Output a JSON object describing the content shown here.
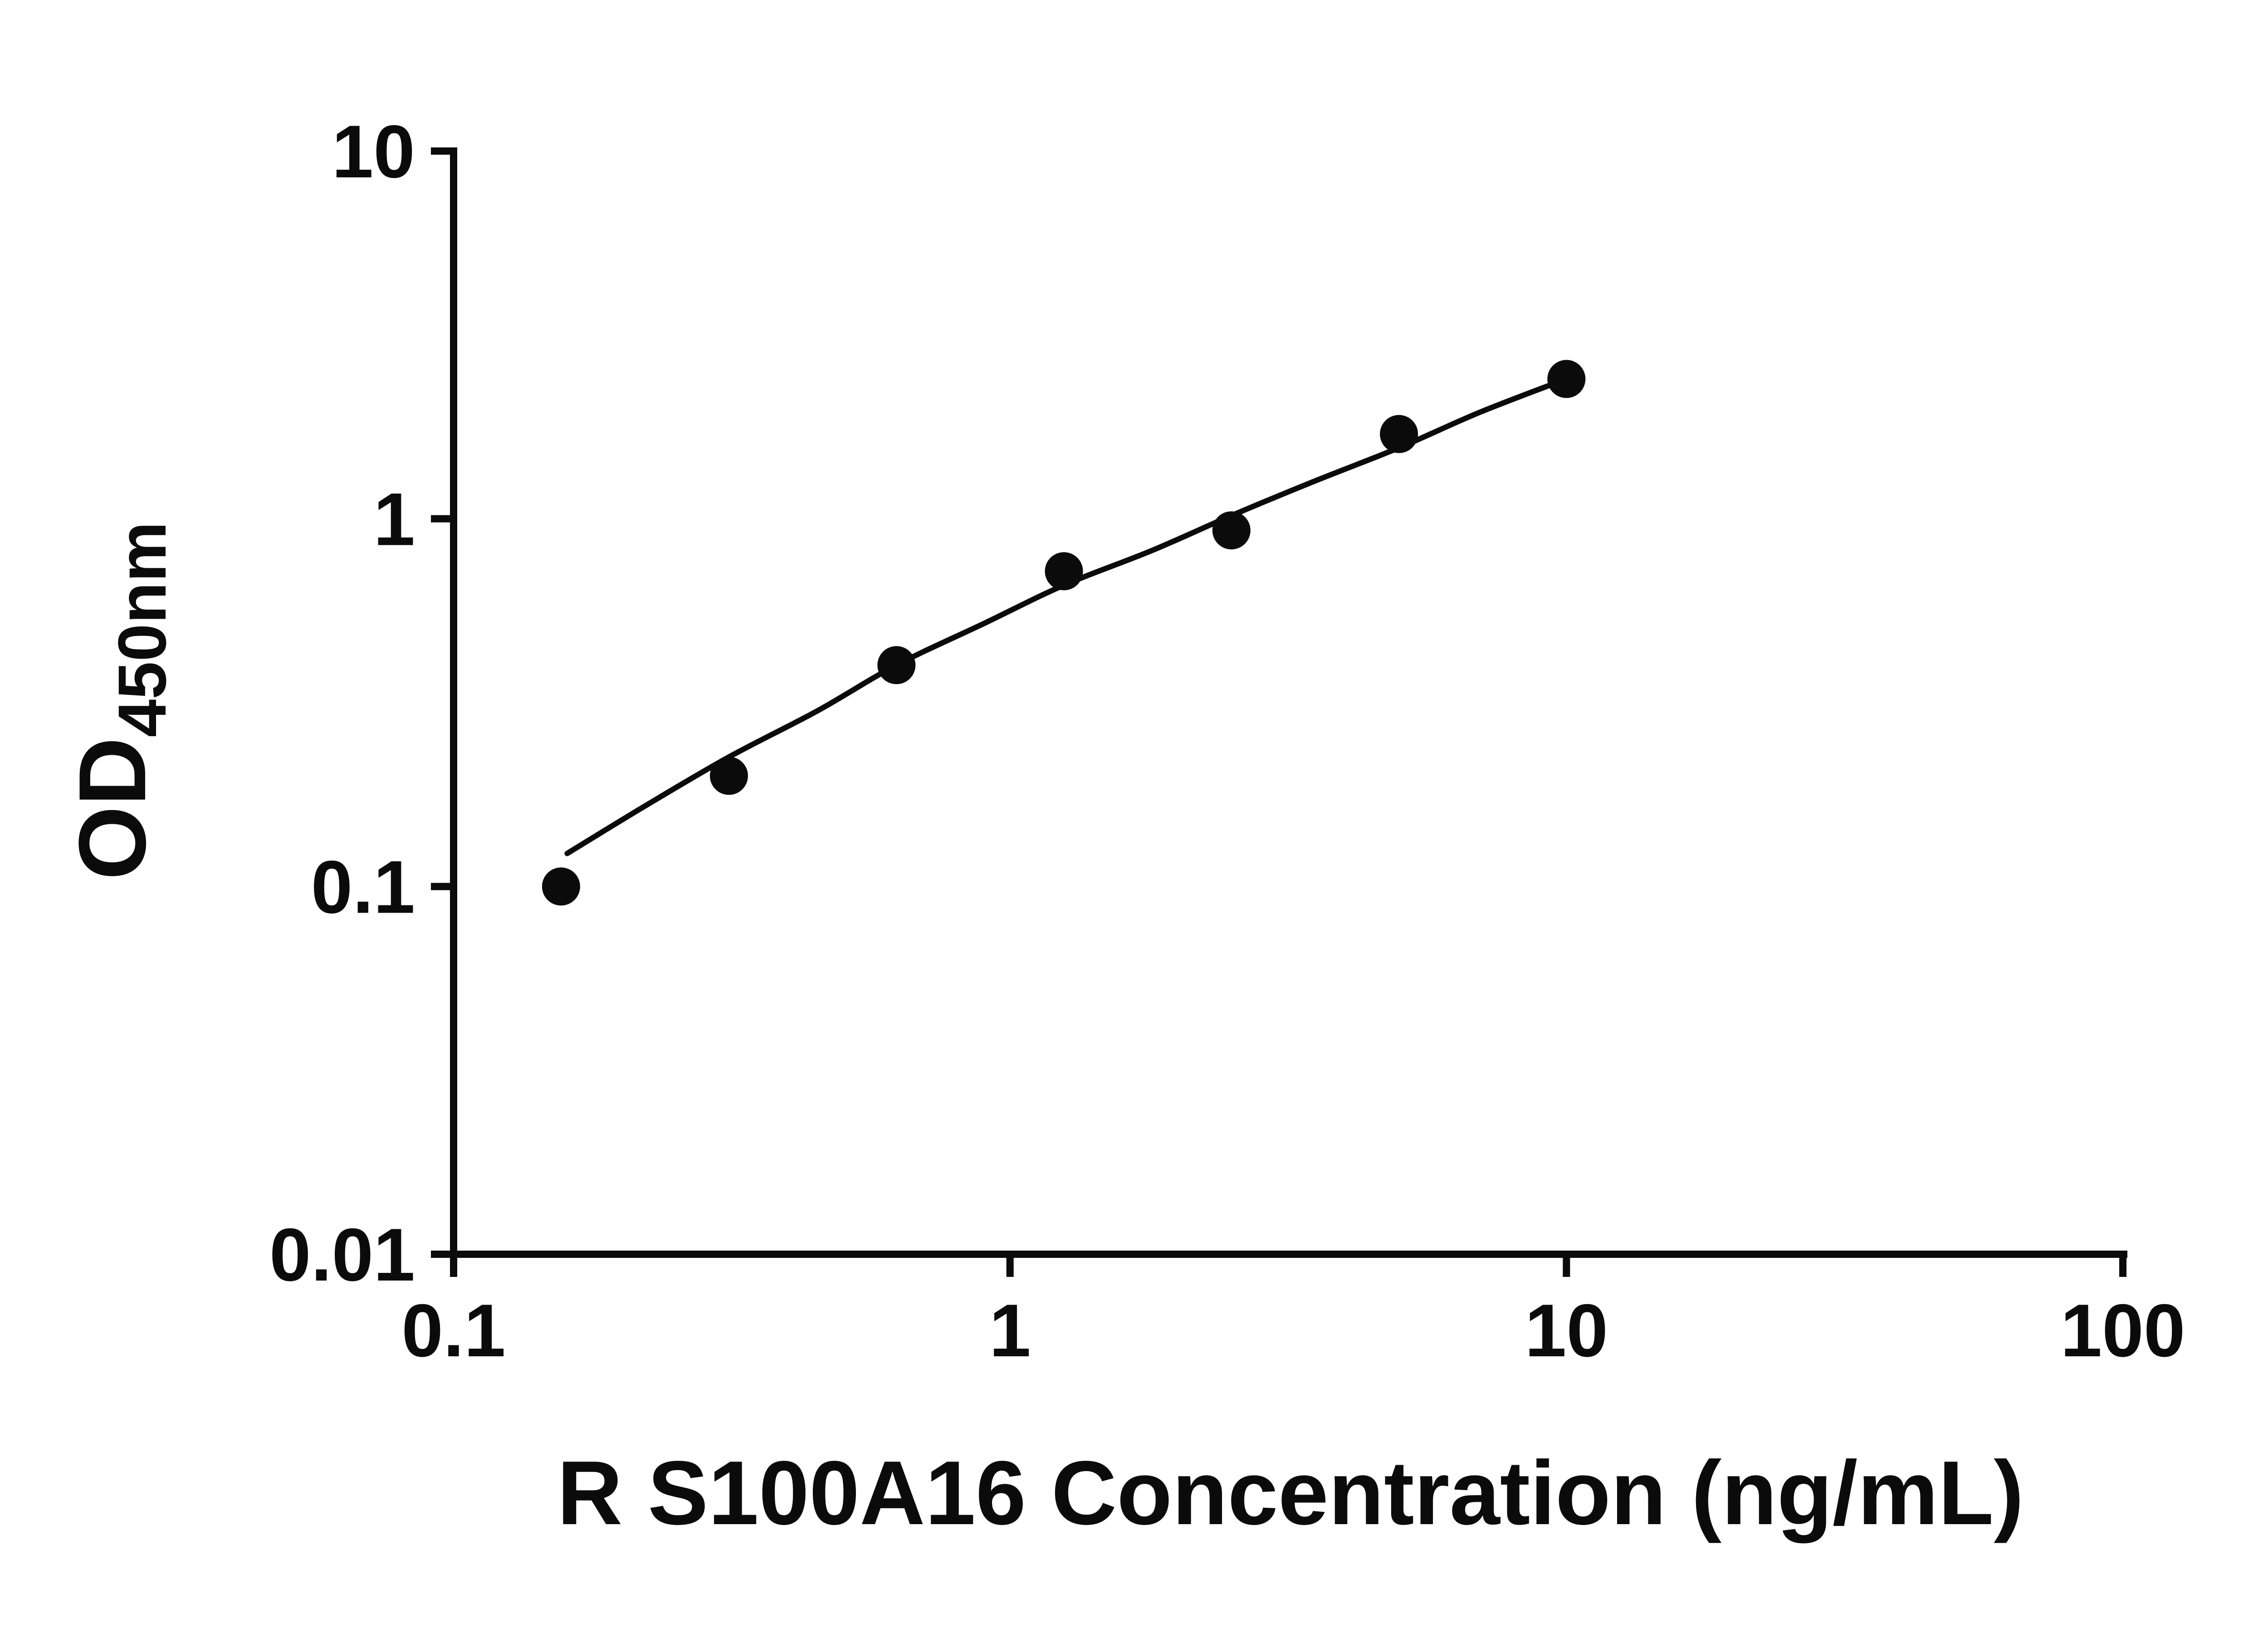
{
  "chart_data": {
    "type": "scatter",
    "title": "",
    "xlabel": "R S100A16 Concentration (ng/mL)",
    "ylabel": "OD",
    "ylabel_subscript": "450nm",
    "x_scale": "log",
    "y_scale": "log",
    "xlim": [
      0.1,
      100
    ],
    "ylim": [
      0.01,
      10
    ],
    "grid": false,
    "legend": "none",
    "x_ticks": [
      0.1,
      1,
      10,
      100
    ],
    "x_tick_labels": [
      "0.1",
      "1",
      "10",
      "100"
    ],
    "y_ticks": [
      0.01,
      0.1,
      1,
      10
    ],
    "y_tick_labels": [
      "0.01",
      "0.1",
      "1",
      "10"
    ],
    "points": [
      {
        "x": 0.156,
        "y": 0.1
      },
      {
        "x": 0.3125,
        "y": 0.2
      },
      {
        "x": 0.625,
        "y": 0.4
      },
      {
        "x": 1.25,
        "y": 0.72
      },
      {
        "x": 2.5,
        "y": 0.93
      },
      {
        "x": 5,
        "y": 1.7
      },
      {
        "x": 10,
        "y": 2.4
      }
    ],
    "fit_curve": [
      [
        0.16,
        0.123
      ],
      [
        0.22,
        0.165
      ],
      [
        0.3125,
        0.225
      ],
      [
        0.45,
        0.3
      ],
      [
        0.625,
        0.4
      ],
      [
        0.9,
        0.52
      ],
      [
        1.25,
        0.66
      ],
      [
        1.8,
        0.82
      ],
      [
        2.5,
        1.02
      ],
      [
        3.5,
        1.26
      ],
      [
        5,
        1.56
      ],
      [
        7,
        1.95
      ],
      [
        10,
        2.4
      ]
    ],
    "marker_color": "#0b0b0b",
    "line_color": "#0b0b0b",
    "axis_color": "#0b0b0b",
    "background_color": "#ffffff"
  }
}
